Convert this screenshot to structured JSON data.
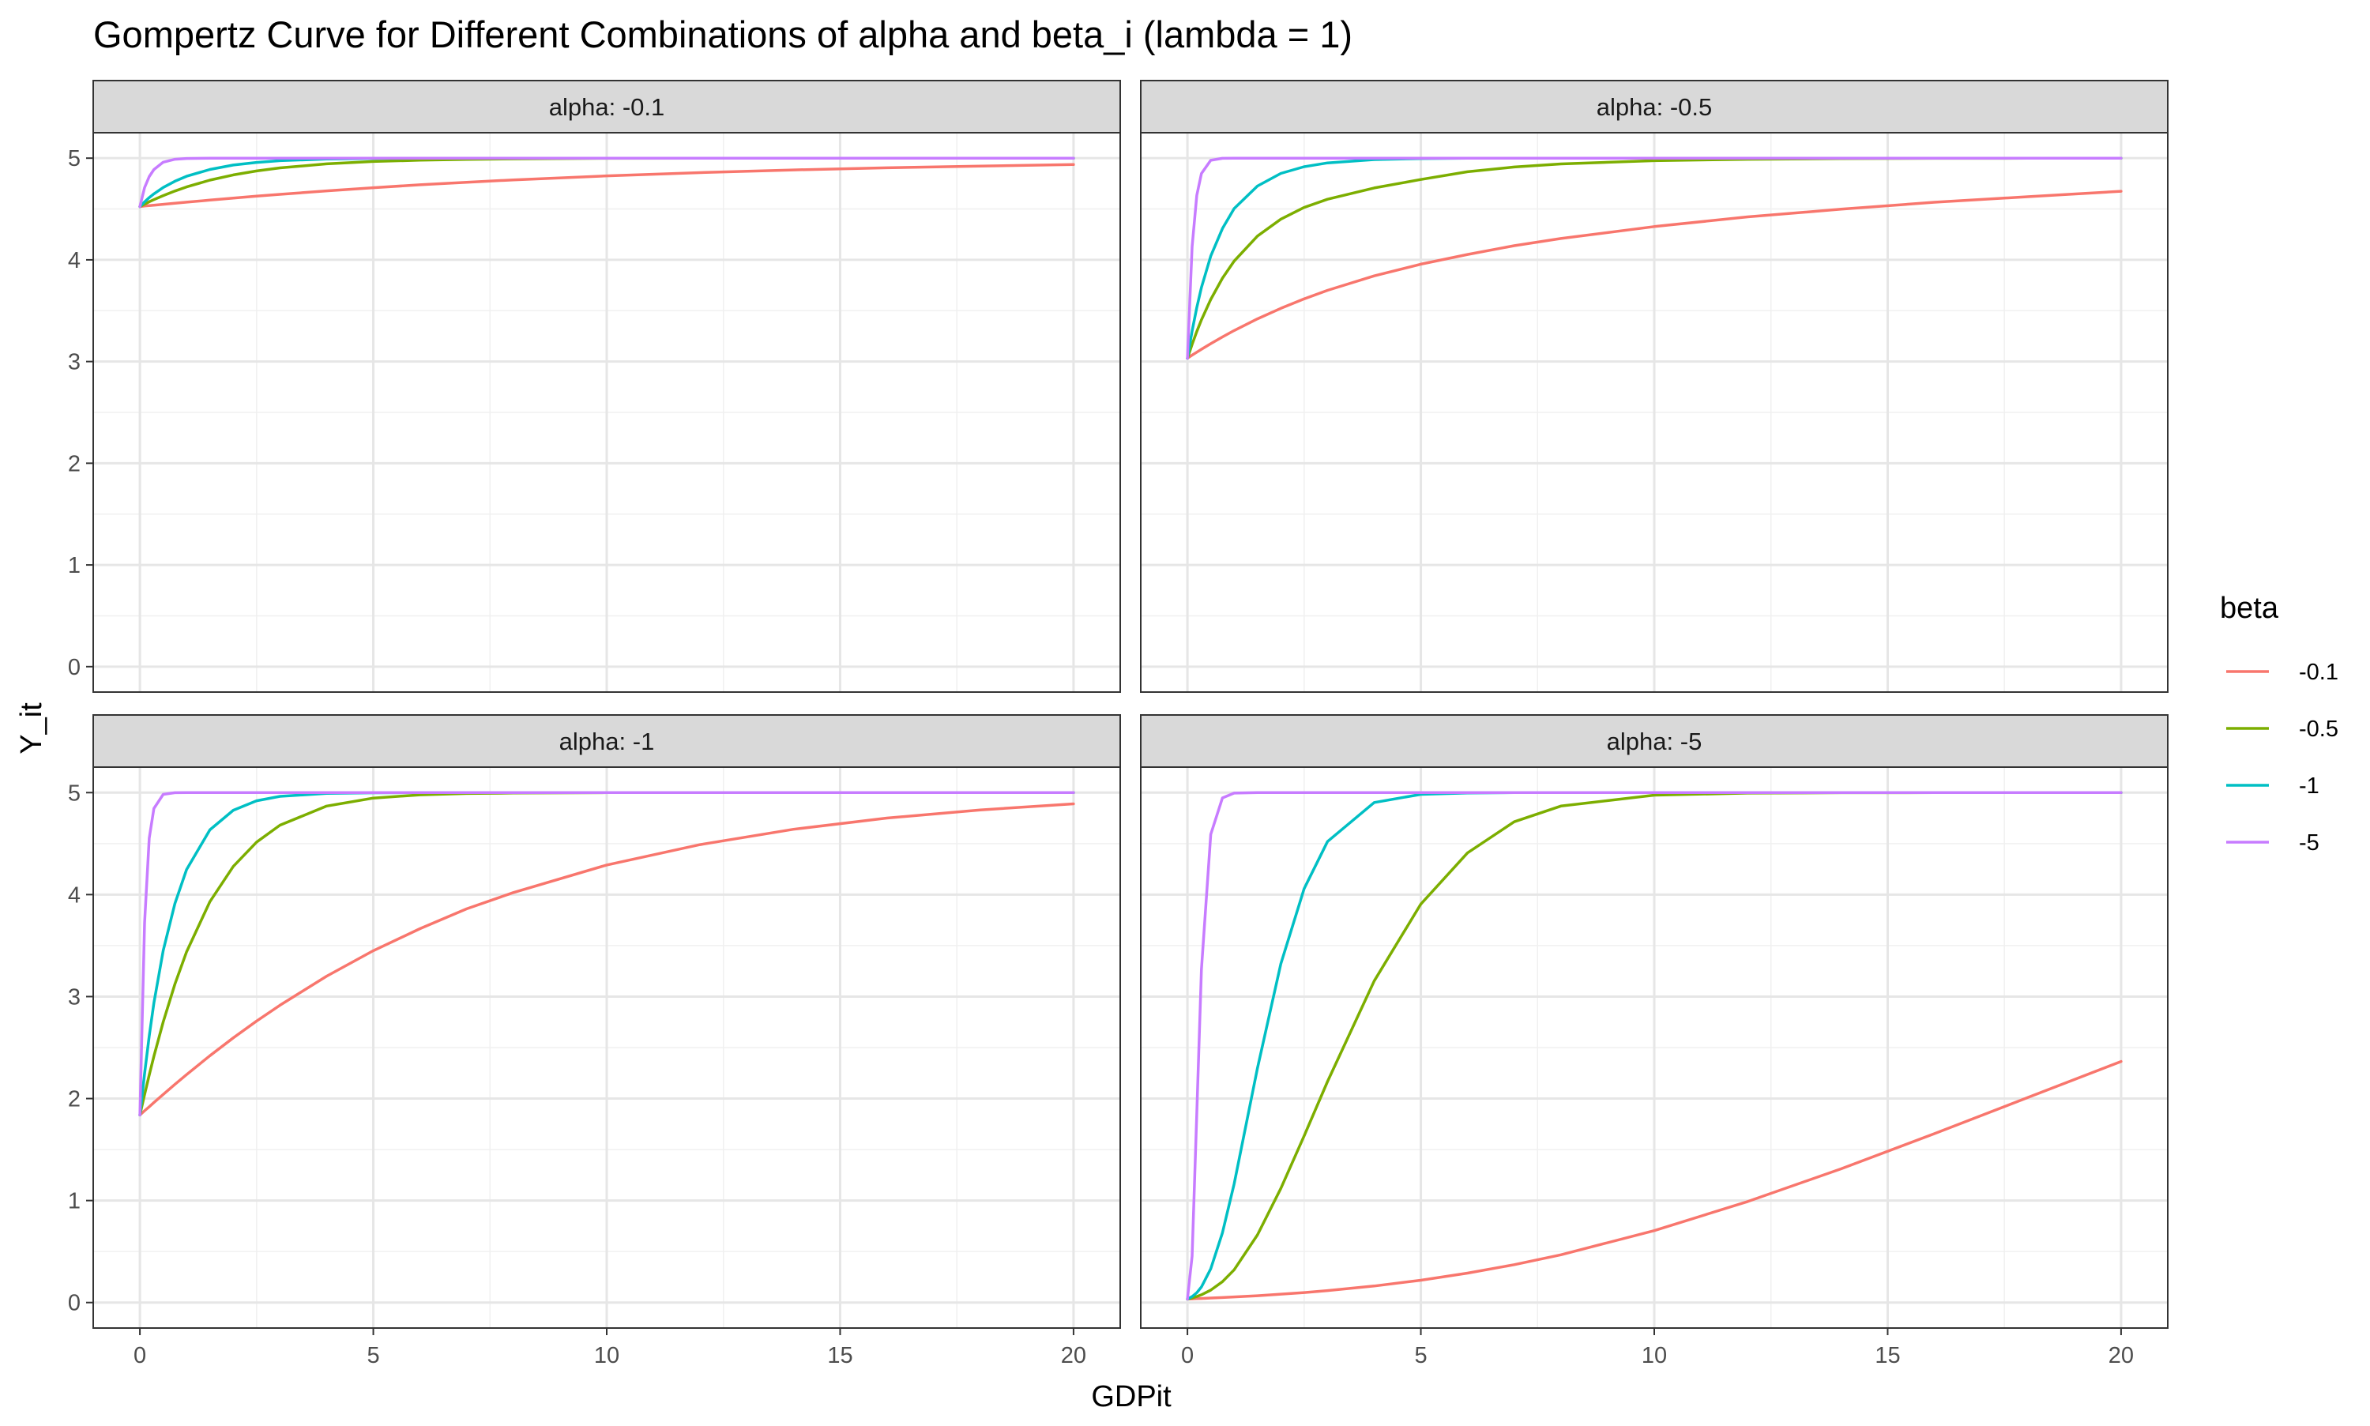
{
  "chart_data": {
    "type": "line",
    "title": "Gompertz Curve for Different Combinations of alpha and beta_i (lambda = 1)",
    "xlabel": "GDPit",
    "ylabel": "Y_it",
    "xlim": [
      -1,
      21
    ],
    "ylim": [
      -0.25,
      5.25
    ],
    "x_ticks": [
      "0",
      "5",
      "10",
      "15",
      "20"
    ],
    "y_ticks": [
      "0",
      "1",
      "2",
      "3",
      "4",
      "5"
    ],
    "grid": true,
    "legend": {
      "title": "beta",
      "position": "right",
      "entries": [
        {
          "label": "-0.1",
          "color": "#F8766D"
        },
        {
          "label": "-0.5",
          "color": "#7CAE00"
        },
        {
          "label": "-1",
          "color": "#00BFC4"
        },
        {
          "label": "-5",
          "color": "#C77CFF"
        }
      ]
    },
    "model": {
      "asymptote": 5,
      "lambda": 1
    },
    "x": [
      0,
      0.1,
      0.2,
      0.3,
      0.5,
      0.75,
      1,
      1.5,
      2,
      2.5,
      3,
      4,
      5,
      6,
      7,
      8,
      10,
      12,
      14,
      16,
      18,
      20
    ],
    "panels": [
      {
        "label": "alpha: -0.1",
        "series": [
          {
            "name": "-0.1",
            "color": "#F8766D",
            "values": [
              4.524,
              4.529,
              4.533,
              4.537,
              4.546,
              4.556,
              4.567,
              4.587,
              4.607,
              4.626,
              4.644,
              4.678,
              4.709,
              4.738,
              4.763,
              4.786,
              4.826,
              4.858,
              4.884,
              4.905,
              4.922,
              4.937
            ]
          },
          {
            "name": "-0.5",
            "color": "#7CAE00",
            "values": [
              4.524,
              4.548,
              4.571,
              4.592,
              4.632,
              4.677,
              4.717,
              4.784,
              4.835,
              4.874,
              4.904,
              4.944,
              4.967,
              4.98,
              4.988,
              4.993,
              4.998,
              4.999,
              5.0,
              5.0,
              5.0,
              5.0
            ]
          },
          {
            "name": "-1",
            "color": "#00BFC4",
            "values": [
              4.524,
              4.57,
              4.612,
              4.649,
              4.712,
              4.773,
              4.822,
              4.889,
              4.932,
              4.958,
              4.975,
              4.991,
              4.997,
              4.999,
              5.0,
              5.0,
              5.0,
              5.0,
              5.0,
              5.0,
              5.0,
              5.0
            ]
          },
          {
            "name": "-5",
            "color": "#C77CFF",
            "values": [
              4.524,
              4.71,
              4.819,
              4.888,
              4.96,
              4.989,
              4.997,
              5.0,
              5.0,
              5.0,
              5.0,
              5.0,
              5.0,
              5.0,
              5.0,
              5.0,
              5.0,
              5.0,
              5.0,
              5.0,
              5.0,
              5.0
            ]
          }
        ]
      },
      {
        "label": "alpha: -0.5",
        "series": [
          {
            "name": "-0.1",
            "color": "#F8766D",
            "values": [
              3.033,
              3.063,
              3.092,
              3.121,
              3.176,
              3.242,
              3.305,
              3.42,
              3.523,
              3.616,
              3.7,
              3.842,
              3.957,
              4.053,
              4.139,
              4.21,
              4.327,
              4.423,
              4.498,
              4.566,
              4.621,
              4.674
            ]
          },
          {
            "name": "-0.5",
            "color": "#7CAE00",
            "values": [
              3.033,
              3.169,
              3.295,
              3.41,
              3.611,
              3.82,
              3.988,
              4.234,
              4.4,
              4.515,
              4.596,
              4.707,
              4.79,
              4.866,
              4.913,
              4.943,
              4.975,
              4.989,
              4.995,
              4.998,
              4.999,
              5.0
            ]
          },
          {
            "name": "-1",
            "color": "#00BFC4",
            "values": [
              3.033,
              3.3,
              3.53,
              3.728,
              4.037,
              4.308,
              4.504,
              4.726,
              4.85,
              4.916,
              4.953,
              4.986,
              4.996,
              4.999,
              5.0,
              5.0,
              5.0,
              5.0,
              5.0,
              5.0,
              5.0,
              5.0
            ]
          },
          {
            "name": "-5",
            "color": "#C77CFF",
            "values": [
              3.033,
              4.129,
              4.633,
              4.849,
              4.979,
              4.998,
              5.0,
              5.0,
              5.0,
              5.0,
              5.0,
              5.0,
              5.0,
              5.0,
              5.0,
              5.0,
              5.0,
              5.0,
              5.0,
              5.0,
              5.0,
              5.0
            ]
          }
        ]
      },
      {
        "label": "alpha: -1",
        "series": [
          {
            "name": "-0.1",
            "color": "#F8766D",
            "values": [
              1.839,
              1.88,
              1.92,
              1.961,
              2.041,
              2.139,
              2.235,
              2.42,
              2.595,
              2.76,
              2.915,
              3.2,
              3.45,
              3.666,
              3.86,
              4.02,
              4.29,
              4.49,
              4.64,
              4.75,
              4.83,
              4.89
            ]
          },
          {
            "name": "-0.5",
            "color": "#7CAE00",
            "values": [
              1.839,
              2.038,
              2.231,
              2.414,
              2.752,
              3.122,
              3.44,
              3.931,
              4.276,
              4.515,
              4.681,
              4.868,
              4.946,
              4.978,
              4.991,
              4.996,
              5.0,
              5.0,
              5.0,
              5.0,
              5.0,
              5.0
            ]
          },
          {
            "name": "-1",
            "color": "#00BFC4",
            "values": [
              1.839,
              2.244,
              2.613,
              2.937,
              3.451,
              3.912,
              4.246,
              4.635,
              4.827,
              4.92,
              4.963,
              4.992,
              4.998,
              5.0,
              5.0,
              5.0,
              5.0,
              5.0,
              5.0,
              5.0,
              5.0,
              5.0
            ]
          },
          {
            "name": "-5",
            "color": "#C77CFF",
            "values": [
              1.839,
              3.722,
              4.553,
              4.844,
              4.983,
              4.999,
              5.0,
              5.0,
              5.0,
              5.0,
              5.0,
              5.0,
              5.0,
              5.0,
              5.0,
              5.0,
              5.0,
              5.0,
              5.0,
              5.0,
              5.0,
              5.0
            ]
          }
        ]
      },
      {
        "label": "alpha: -5",
        "series": [
          {
            "name": "-0.1",
            "color": "#F8766D",
            "values": [
              0.034,
              0.036,
              0.038,
              0.04,
              0.044,
              0.049,
              0.055,
              0.067,
              0.082,
              0.098,
              0.117,
              0.162,
              0.219,
              0.288,
              0.371,
              0.468,
              0.705,
              0.99,
              1.311,
              1.656,
              2.01,
              2.364
            ]
          },
          {
            "name": "-0.5",
            "color": "#7CAE00",
            "values": [
              0.034,
              0.045,
              0.059,
              0.076,
              0.122,
              0.205,
              0.321,
              0.663,
              1.119,
              1.634,
              2.167,
              3.153,
              3.907,
              4.409,
              4.714,
              4.868,
              4.975,
              4.995,
              4.999,
              5.0,
              5.0,
              5.0
            ]
          },
          {
            "name": "-1",
            "color": "#00BFC4",
            "values": [
              0.034,
              0.058,
              0.096,
              0.153,
              0.331,
              0.684,
              1.163,
              2.298,
              3.321,
              4.058,
              4.52,
              4.903,
              4.983,
              4.997,
              5.0,
              5.0,
              5.0,
              5.0,
              5.0,
              5.0,
              5.0,
              5.0
            ]
          },
          {
            "name": "-5",
            "color": "#C77CFF",
            "values": [
              0.034,
              0.455,
              1.849,
              3.266,
              4.591,
              4.948,
              4.995,
              5.0,
              5.0,
              5.0,
              5.0,
              5.0,
              5.0,
              5.0,
              5.0,
              5.0,
              5.0,
              5.0,
              5.0,
              5.0,
              5.0,
              5.0
            ]
          }
        ]
      }
    ]
  }
}
